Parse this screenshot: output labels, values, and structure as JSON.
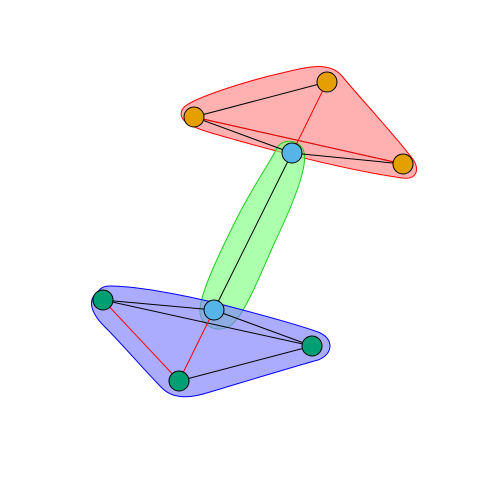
{
  "graph": {
    "type": "network",
    "description_visible_text": "",
    "groups": [
      {
        "name": "top-group",
        "fill": "#ff9090",
        "fill_opacity": 0.7,
        "stroke": "#ff0000",
        "members": [
          "n1",
          "n2",
          "n3",
          "n4"
        ]
      },
      {
        "name": "middle-group",
        "fill": "#80ff80",
        "fill_opacity": 0.65,
        "stroke": "#22cc22",
        "members": [
          "n4",
          "n5"
        ]
      },
      {
        "name": "bottom-group",
        "fill": "#8080ff",
        "fill_opacity": 0.65,
        "stroke": "#0000ff",
        "members": [
          "n5",
          "n6",
          "n7",
          "n8"
        ]
      }
    ],
    "nodes": [
      {
        "id": "n1",
        "color": "#e69f00",
        "group": "top-group"
      },
      {
        "id": "n2",
        "color": "#e69f00",
        "group": "top-group"
      },
      {
        "id": "n3",
        "color": "#e69f00",
        "group": "top-group"
      },
      {
        "id": "n4",
        "color": "#56b4e9",
        "group": "bridge"
      },
      {
        "id": "n5",
        "color": "#56b4e9",
        "group": "bridge"
      },
      {
        "id": "n6",
        "color": "#009e73",
        "group": "bottom-group"
      },
      {
        "id": "n7",
        "color": "#009e73",
        "group": "bottom-group"
      },
      {
        "id": "n8",
        "color": "#009e73",
        "group": "bottom-group"
      }
    ],
    "edges": [
      {
        "source": "n1",
        "target": "n2",
        "color": "#000000"
      },
      {
        "source": "n1",
        "target": "n3",
        "color": "#000000"
      },
      {
        "source": "n1",
        "target": "n4",
        "color": "#000000"
      },
      {
        "source": "n4",
        "target": "n3",
        "color": "#000000"
      },
      {
        "source": "n2",
        "target": "n4",
        "color": "#ff0000"
      },
      {
        "source": "n1",
        "target": "n3",
        "color": "#ff0000"
      },
      {
        "source": "n4",
        "target": "n5",
        "color": "#000000"
      },
      {
        "source": "n6",
        "target": "n5",
        "color": "#000000"
      },
      {
        "source": "n6",
        "target": "n8",
        "color": "#000000"
      },
      {
        "source": "n6",
        "target": "n7",
        "color": "#ff0000"
      },
      {
        "source": "n7",
        "target": "n5",
        "color": "#ff0000"
      },
      {
        "source": "n5",
        "target": "n8",
        "color": "#000000"
      },
      {
        "source": "n7",
        "target": "n8",
        "color": "#000000"
      }
    ]
  }
}
